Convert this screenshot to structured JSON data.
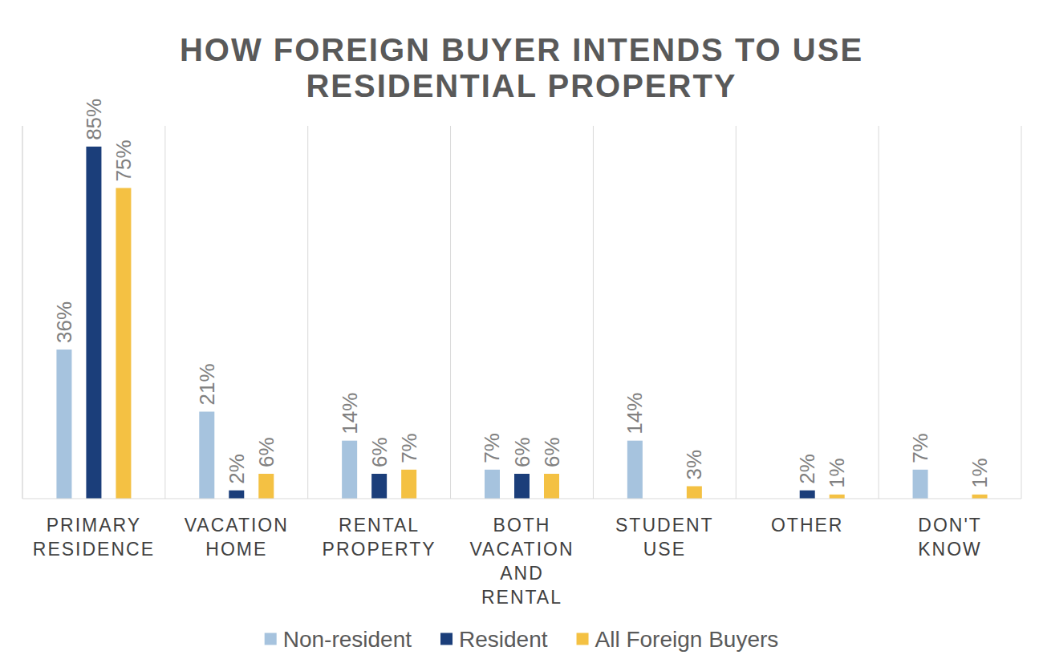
{
  "chart_data": {
    "type": "bar",
    "title": "HOW FOREIGN BUYER INTENDS TO USE RESIDENTIAL PROPERTY",
    "categories": [
      "PRIMARY RESIDENCE",
      "VACATION HOME",
      "RENTAL PROPERTY",
      "BOTH VACATION AND RENTAL",
      "STUDENT USE",
      "OTHER",
      "DON'T KNOW"
    ],
    "series": [
      {
        "name": "Non-resident",
        "color": "#a6c3de",
        "values": [
          36,
          21,
          14,
          7,
          14,
          null,
          7
        ],
        "value_labels": [
          "36%",
          "21%",
          "14%",
          "7%",
          "14%",
          null,
          "7%"
        ]
      },
      {
        "name": "Resident",
        "color": "#1b3e7a",
        "values": [
          85,
          2,
          6,
          6,
          null,
          2,
          null
        ],
        "value_labels": [
          "85%",
          "2%",
          "6%",
          "6%",
          null,
          "2%",
          null
        ]
      },
      {
        "name": "All Foreign Buyers",
        "color": "#f4c143",
        "values": [
          75,
          6,
          7,
          6,
          3,
          1,
          1
        ],
        "value_labels": [
          "75%",
          "6%",
          "7%",
          "6%",
          "3%",
          "1%",
          "1%"
        ]
      }
    ],
    "ylim": [
      0,
      90
    ],
    "grid": true,
    "legend": "bottom",
    "data_labels": true,
    "tick_labels": "x"
  }
}
